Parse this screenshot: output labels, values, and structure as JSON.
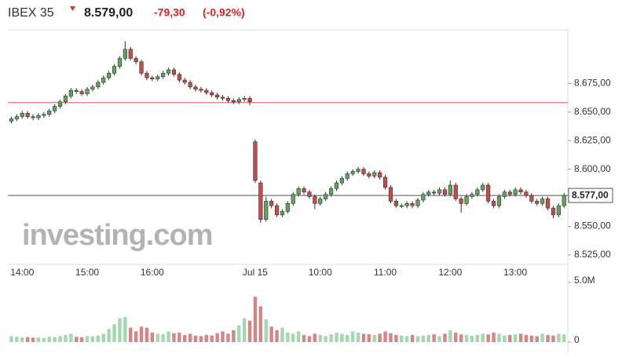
{
  "header": {
    "name": "IBEX 35",
    "price": "8.579,00",
    "change": "-79,30",
    "change_pct": "(-0,92%)"
  },
  "chart_data": [
    {
      "type": "candlestick",
      "categories": [
        null,
        null,
        "14:00",
        null,
        null,
        null,
        null,
        null,
        null,
        null,
        null,
        null,
        null,
        null,
        "15:00",
        null,
        null,
        null,
        null,
        null,
        null,
        null,
        null,
        null,
        null,
        null,
        "16:00",
        null,
        null,
        null,
        null,
        null,
        null,
        null,
        null,
        null,
        null,
        null,
        null,
        null,
        null,
        null,
        null,
        null,
        null,
        "Jul 15",
        null,
        null,
        null,
        null,
        null,
        null,
        null,
        null,
        null,
        null,
        null,
        "10:00",
        null,
        null,
        null,
        null,
        null,
        null,
        null,
        null,
        null,
        null,
        null,
        "11:00",
        null,
        null,
        null,
        null,
        null,
        null,
        null,
        null,
        null,
        null,
        null,
        "12:00",
        null,
        null,
        null,
        null,
        null,
        null,
        null,
        null,
        null,
        null,
        null,
        "13:00",
        null,
        null,
        null,
        null,
        null,
        null,
        null,
        null,
        null
      ],
      "open": [
        8642,
        8644,
        8646,
        8649,
        8646,
        8645,
        8647,
        8648,
        8651,
        8655,
        8659,
        8664,
        8669,
        8668,
        8666,
        8670,
        8672,
        8676,
        8680,
        8684,
        8690,
        8697,
        8705,
        8697,
        8694,
        8684,
        8680,
        8679,
        8681,
        8684,
        8687,
        8683,
        8678,
        8676,
        8672,
        8670,
        8669,
        8667,
        8665,
        8663,
        8662,
        8660,
        8659,
        8661,
        8662,
        8624,
        8588,
        8556,
        8572,
        8568,
        8560,
        8563,
        8570,
        8578,
        8583,
        8580,
        8576,
        8570,
        8574,
        8578,
        8583,
        8588,
        8592,
        8596,
        8598,
        8600,
        8596,
        8594,
        8597,
        8593,
        8584,
        8572,
        8568,
        8568,
        8570,
        8568,
        8573,
        8578,
        8580,
        8579,
        8582,
        8578,
        8586,
        8574,
        8570,
        8576,
        8578,
        8582,
        8586,
        8572,
        8568,
        8576,
        8580,
        8578,
        8582,
        8580,
        8577,
        8572,
        8570,
        8574,
        8566,
        8560,
        8568
      ],
      "high": [
        8646,
        8648,
        8651,
        8651,
        8648,
        8649,
        8650,
        8653,
        8657,
        8661,
        8666,
        8671,
        8671,
        8670,
        8672,
        8674,
        8678,
        8682,
        8686,
        8692,
        8699,
        8712,
        8707,
        8699,
        8696,
        8686,
        8682,
        8683,
        8686,
        8689,
        8689,
        8685,
        8680,
        8678,
        8674,
        8672,
        8671,
        8669,
        8667,
        8665,
        8664,
        8662,
        8663,
        8664,
        8664,
        8626,
        8590,
        8576,
        8574,
        8570,
        8565,
        8572,
        8580,
        8585,
        8585,
        8582,
        8578,
        8576,
        8580,
        8585,
        8590,
        8594,
        8598,
        8600,
        8602,
        8602,
        8598,
        8599,
        8599,
        8595,
        8586,
        8574,
        8570,
        8572,
        8572,
        8575,
        8580,
        8582,
        8582,
        8584,
        8584,
        8590,
        8588,
        8576,
        8578,
        8580,
        8584,
        8588,
        8588,
        8574,
        8578,
        8582,
        8582,
        8584,
        8584,
        8582,
        8579,
        8574,
        8576,
        8576,
        8568,
        8570,
        8579
      ],
      "low": [
        8640,
        8642,
        8644,
        8644,
        8643,
        8643,
        8645,
        8646,
        8649,
        8653,
        8657,
        8662,
        8666,
        8664,
        8664,
        8668,
        8670,
        8674,
        8678,
        8682,
        8688,
        8695,
        8695,
        8692,
        8682,
        8678,
        8677,
        8677,
        8679,
        8682,
        8681,
        8676,
        8674,
        8670,
        8668,
        8667,
        8665,
        8663,
        8661,
        8660,
        8658,
        8657,
        8657,
        8659,
        8656,
        8588,
        8553,
        8554,
        8566,
        8558,
        8558,
        8561,
        8568,
        8576,
        8578,
        8574,
        8565,
        8568,
        8572,
        8576,
        8581,
        8586,
        8590,
        8594,
        8596,
        8594,
        8592,
        8592,
        8591,
        8582,
        8570,
        8566,
        8566,
        8566,
        8566,
        8566,
        8571,
        8576,
        8577,
        8577,
        8576,
        8576,
        8572,
        8562,
        8568,
        8574,
        8576,
        8580,
        8570,
        8566,
        8566,
        8574,
        8576,
        8576,
        8578,
        8575,
        8570,
        8568,
        8568,
        8564,
        8557,
        8558,
        8566
      ],
      "close": [
        8644,
        8646,
        8649,
        8646,
        8645,
        8647,
        8648,
        8651,
        8655,
        8659,
        8664,
        8669,
        8668,
        8666,
        8670,
        8672,
        8676,
        8680,
        8684,
        8690,
        8697,
        8705,
        8697,
        8694,
        8684,
        8680,
        8679,
        8681,
        8684,
        8687,
        8683,
        8678,
        8676,
        8672,
        8670,
        8669,
        8667,
        8665,
        8663,
        8662,
        8660,
        8659,
        8661,
        8662,
        8659,
        8590,
        8556,
        8572,
        8568,
        8560,
        8563,
        8570,
        8578,
        8583,
        8580,
        8576,
        8570,
        8574,
        8578,
        8583,
        8588,
        8592,
        8596,
        8598,
        8600,
        8596,
        8594,
        8597,
        8593,
        8584,
        8572,
        8568,
        8568,
        8570,
        8568,
        8573,
        8578,
        8580,
        8579,
        8582,
        8578,
        8586,
        8574,
        8570,
        8576,
        8578,
        8582,
        8586,
        8572,
        8568,
        8576,
        8580,
        8578,
        8582,
        8580,
        8577,
        8572,
        8570,
        8574,
        8566,
        8560,
        8568,
        8577
      ],
      "up_color": "#5fa65a",
      "down_color": "#c94a4a",
      "ylim": [
        8518,
        8722
      ],
      "yticks": [
        {
          "value": 8525,
          "label": "8.525,00"
        },
        {
          "value": 8550,
          "label": "8.550,00"
        },
        {
          "value": 8600,
          "label": "8.600,00"
        },
        {
          "value": 8625,
          "label": "8.625,00"
        },
        {
          "value": 8650,
          "label": "8.650,00"
        },
        {
          "value": 8675,
          "label": "8.675,00"
        }
      ],
      "prev_close": 8658.3,
      "prev_close_color": "#e05a5a",
      "last_price": {
        "value": 8577,
        "label": "8.577,00"
      },
      "watermark": "investing.com"
    },
    {
      "type": "bar",
      "values": [
        500000,
        450000,
        400000,
        420000,
        380000,
        400000,
        350000,
        450000,
        420000,
        500000,
        600000,
        700000,
        450000,
        400000,
        500000,
        480000,
        550000,
        700000,
        1100000,
        1500000,
        2000000,
        2100000,
        1200000,
        900000,
        1300000,
        1200000,
        800000,
        700000,
        650000,
        900000,
        750000,
        800000,
        600000,
        700000,
        550000,
        500000,
        600000,
        550000,
        750000,
        900000,
        700000,
        1000000,
        1400000,
        2000000,
        1800000,
        3800000,
        3000000,
        1900000,
        1300000,
        1000000,
        1200000,
        800000,
        700000,
        900000,
        600000,
        500000,
        700000,
        600000,
        500000,
        650000,
        800000,
        700000,
        600000,
        900000,
        800000,
        700000,
        650000,
        600000,
        700000,
        900000,
        750000,
        600000,
        550000,
        500000,
        600000,
        500000,
        550000,
        600000,
        650000,
        500000,
        700000,
        1000000,
        800000,
        650000,
        600000,
        550000,
        600000,
        700000,
        650000,
        800000,
        700000,
        550000,
        600000,
        650000,
        700000,
        600000,
        550000,
        500000,
        700000,
        600000,
        550000,
        700000,
        650000
      ],
      "up_color": "#a3d9ae",
      "down_color": "#d48585",
      "ylim": [
        0,
        5000000
      ],
      "yticks": [
        0,
        {
          "value": 5000000,
          "label": "5.0M"
        }
      ]
    }
  ]
}
